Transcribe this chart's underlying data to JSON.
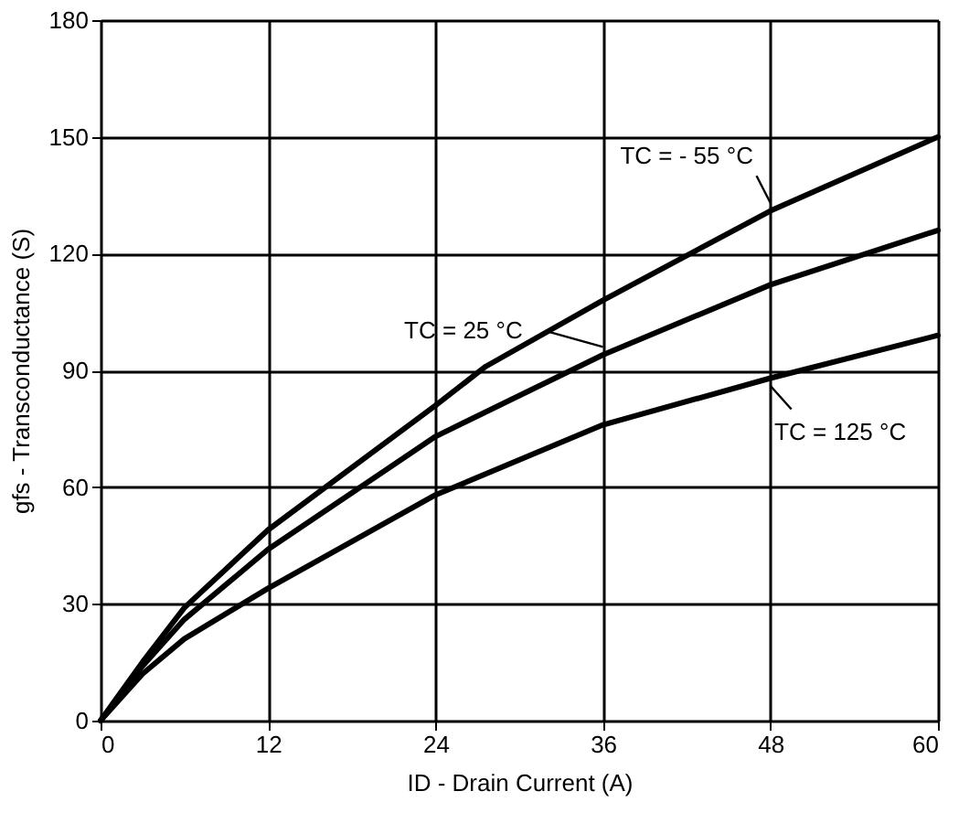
{
  "chart_data": {
    "type": "line",
    "xlabel": "ID - Drain Current (A)",
    "ylabel": "gfs - Transconductance (S)",
    "xlim": [
      0,
      60
    ],
    "ylim": [
      0,
      180
    ],
    "xticks": [
      0,
      12,
      24,
      36,
      48,
      60
    ],
    "yticks": [
      0,
      30,
      60,
      90,
      120,
      150,
      180
    ],
    "grid": true,
    "marker": "none",
    "line_style": "solid",
    "series": [
      {
        "name": "TC = - 55 °C",
        "color": "#000000",
        "x": [
          0,
          3,
          6,
          12,
          24,
          27.6,
          36,
          48,
          60
        ],
        "values": [
          0,
          15,
          29,
          49,
          81,
          91,
          108,
          131,
          150
        ]
      },
      {
        "name": "TC = 25 °C",
        "color": "#000000",
        "x": [
          0,
          3,
          6,
          12,
          24,
          36,
          48,
          60
        ],
        "values": [
          0,
          14,
          26,
          44,
          73,
          94,
          112,
          126
        ]
      },
      {
        "name": "TC = 125 °C",
        "color": "#000000",
        "x": [
          0,
          3,
          6,
          12,
          24,
          36,
          48,
          60
        ],
        "values": [
          0,
          12,
          21,
          34,
          58,
          76,
          88,
          99
        ]
      }
    ]
  }
}
